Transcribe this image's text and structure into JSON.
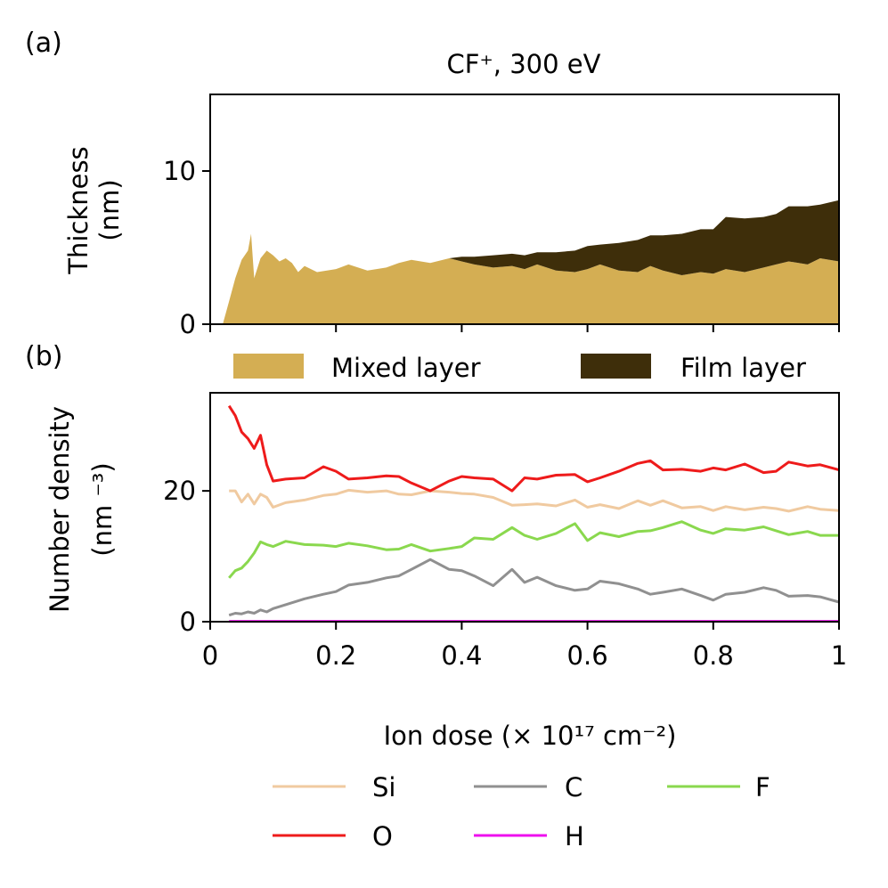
{
  "panel_labels": {
    "a": "(a)",
    "b": "(b)"
  },
  "chart_data": [
    {
      "type": "area",
      "title": "CF⁺, 300 eV",
      "ylabel_line1": "Thickness",
      "ylabel_line2": "(nm)",
      "xlabel": "",
      "xlim": [
        0,
        1
      ],
      "ylim": [
        0,
        15
      ],
      "yticks": [
        0,
        10
      ],
      "ytick_labels": [
        "0",
        "10"
      ],
      "xticks": [
        0,
        0.2,
        0.4,
        0.6,
        0.8,
        1.0
      ],
      "stacked": true,
      "legend_position": "below panel, centered, 2 columns",
      "x": [
        0.02,
        0.03,
        0.04,
        0.05,
        0.06,
        0.065,
        0.07,
        0.08,
        0.09,
        0.1,
        0.11,
        0.12,
        0.13,
        0.14,
        0.15,
        0.17,
        0.2,
        0.22,
        0.25,
        0.28,
        0.3,
        0.32,
        0.35,
        0.38,
        0.4,
        0.42,
        0.45,
        0.48,
        0.5,
        0.52,
        0.55,
        0.58,
        0.6,
        0.62,
        0.65,
        0.68,
        0.7,
        0.72,
        0.75,
        0.78,
        0.8,
        0.82,
        0.85,
        0.88,
        0.9,
        0.92,
        0.95,
        0.97,
        1.0
      ],
      "series": [
        {
          "name": "Mixed layer",
          "color": "#d4ae53",
          "values": [
            0,
            1.5,
            3.0,
            4.2,
            4.8,
            5.9,
            3.0,
            4.3,
            4.8,
            4.5,
            4.1,
            4.3,
            4.0,
            3.4,
            3.8,
            3.4,
            3.6,
            3.9,
            3.5,
            3.7,
            4.0,
            4.2,
            4.0,
            4.3,
            4.1,
            3.9,
            3.7,
            3.8,
            3.6,
            3.9,
            3.5,
            3.4,
            3.6,
            3.9,
            3.5,
            3.4,
            3.8,
            3.5,
            3.2,
            3.4,
            3.3,
            3.6,
            3.4,
            3.7,
            3.9,
            4.1,
            3.9,
            4.3,
            4.1
          ]
        },
        {
          "name": "Film layer",
          "color": "#3e2e0a",
          "values": [
            0,
            0,
            0,
            0,
            0,
            0,
            0,
            0,
            0,
            0,
            0,
            0,
            0,
            0,
            0,
            0,
            0,
            0,
            0,
            0,
            0,
            0,
            0,
            0,
            0.3,
            0.5,
            0.8,
            0.8,
            0.9,
            0.8,
            1.2,
            1.4,
            1.5,
            1.3,
            1.8,
            2.1,
            2.0,
            2.3,
            2.7,
            2.8,
            2.9,
            3.4,
            3.5,
            3.3,
            3.3,
            3.6,
            3.8,
            3.5,
            4.0
          ]
        }
      ]
    },
    {
      "type": "line",
      "title": "",
      "ylabel_line1": "Number density",
      "ylabel_line2": "(nm ⁻³)",
      "xlabel": "Ion dose (× 10¹⁷ cm⁻²)",
      "xlim": [
        0,
        1
      ],
      "ylim": [
        0,
        35
      ],
      "yticks": [
        0,
        20
      ],
      "ytick_labels": [
        "0",
        "20"
      ],
      "xticks": [
        0,
        0.2,
        0.4,
        0.6,
        0.8,
        1.0
      ],
      "xtick_labels": [
        "0",
        "0.2",
        "0.4",
        "0.6",
        "0.8",
        "1"
      ],
      "legend_position": "below chart, centered, 3 columns",
      "x": [
        0.03,
        0.04,
        0.05,
        0.06,
        0.07,
        0.08,
        0.09,
        0.1,
        0.12,
        0.15,
        0.18,
        0.2,
        0.22,
        0.25,
        0.28,
        0.3,
        0.32,
        0.35,
        0.38,
        0.4,
        0.42,
        0.45,
        0.48,
        0.5,
        0.52,
        0.55,
        0.58,
        0.6,
        0.62,
        0.65,
        0.68,
        0.7,
        0.72,
        0.75,
        0.78,
        0.8,
        0.82,
        0.85,
        0.88,
        0.9,
        0.92,
        0.95,
        0.97,
        1.0
      ],
      "series": [
        {
          "name": "Si",
          "color": "#f0caa0",
          "values": [
            20.0,
            20.0,
            18.3,
            19.5,
            18.0,
            19.5,
            19.0,
            17.5,
            18.2,
            18.6,
            19.3,
            19.5,
            20.1,
            19.8,
            20.0,
            19.5,
            19.4,
            20.0,
            19.8,
            19.6,
            19.5,
            19.0,
            17.8,
            17.9,
            18.0,
            17.7,
            18.6,
            17.5,
            17.9,
            17.3,
            18.5,
            17.8,
            18.5,
            17.4,
            17.6,
            17.0,
            17.6,
            17.1,
            17.5,
            17.3,
            16.9,
            17.6,
            17.2,
            17.0
          ]
        },
        {
          "name": "C",
          "color": "#909090",
          "values": [
            1.0,
            1.3,
            1.2,
            1.5,
            1.3,
            1.8,
            1.5,
            2.0,
            2.6,
            3.5,
            4.2,
            4.6,
            5.6,
            6.0,
            6.7,
            7.0,
            8.0,
            9.5,
            8.0,
            7.8,
            7.0,
            5.5,
            8.0,
            6.0,
            6.8,
            5.5,
            4.8,
            5.0,
            6.2,
            5.8,
            5.0,
            4.2,
            4.5,
            5.0,
            4.0,
            3.3,
            4.2,
            4.5,
            5.2,
            4.8,
            3.9,
            4.0,
            3.8,
            3.0
          ]
        },
        {
          "name": "F",
          "color": "#8ad84e",
          "values": [
            6.7,
            7.8,
            8.2,
            9.2,
            10.5,
            12.2,
            11.8,
            11.5,
            12.3,
            11.8,
            11.7,
            11.5,
            12.0,
            11.6,
            11.0,
            11.1,
            11.8,
            10.8,
            11.2,
            11.5,
            12.8,
            12.6,
            14.4,
            13.2,
            12.6,
            13.5,
            15.0,
            12.4,
            13.6,
            13.0,
            13.8,
            13.9,
            14.4,
            15.3,
            14.0,
            13.5,
            14.2,
            14.0,
            14.5,
            13.9,
            13.3,
            13.8,
            13.2,
            13.2
          ]
        },
        {
          "name": "O",
          "color": "#ee1b1b",
          "values": [
            33.0,
            31.5,
            29.0,
            28.0,
            26.5,
            28.5,
            24.0,
            21.5,
            21.8,
            22.0,
            23.7,
            23.0,
            21.8,
            22.0,
            22.3,
            22.2,
            21.2,
            20.0,
            21.5,
            22.2,
            22.0,
            21.8,
            20.0,
            22.0,
            21.8,
            22.4,
            22.5,
            21.4,
            22.0,
            23.0,
            24.2,
            24.6,
            23.2,
            23.3,
            23.0,
            23.5,
            23.2,
            24.1,
            22.8,
            23.0,
            24.4,
            23.8,
            24.0,
            23.2
          ]
        },
        {
          "name": "H",
          "color": "#ee10ee",
          "values": [
            0.05,
            0.05,
            0.05,
            0.05,
            0.05,
            0.05,
            0.05,
            0.05,
            0.05,
            0.05,
            0.05,
            0.05,
            0.05,
            0.05,
            0.05,
            0.05,
            0.05,
            0.05,
            0.05,
            0.05,
            0.05,
            0.05,
            0.05,
            0.05,
            0.05,
            0.05,
            0.05,
            0.05,
            0.05,
            0.05,
            0.05,
            0.05,
            0.05,
            0.05,
            0.05,
            0.05,
            0.05,
            0.05,
            0.05,
            0.05,
            0.05,
            0.05,
            0.05,
            0.05
          ]
        }
      ]
    }
  ]
}
